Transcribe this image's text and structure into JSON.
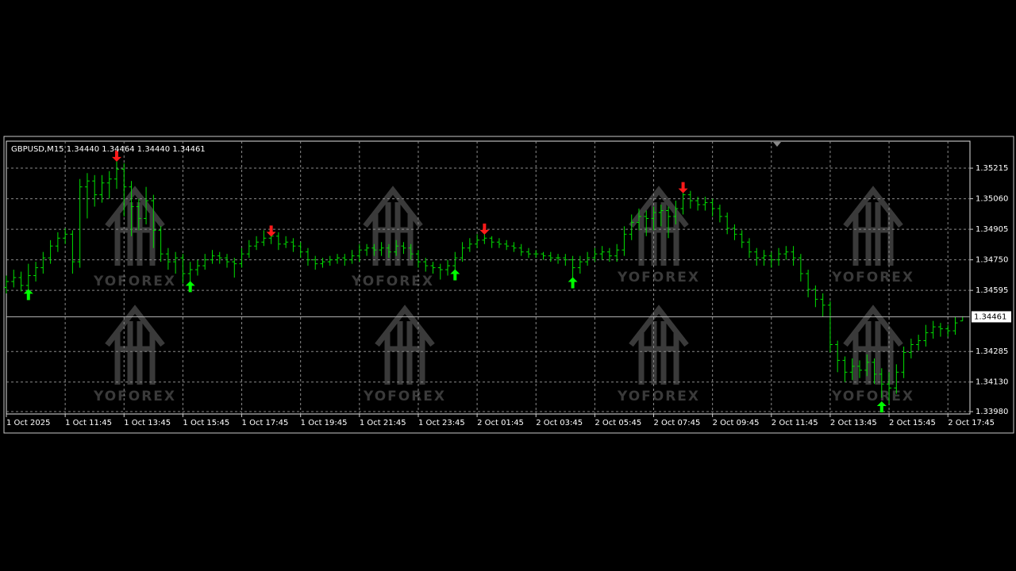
{
  "chart_data": {
    "type": "ohlc",
    "title": "GBPUSD,M15  1.34440 1.34464 1.34440 1.34461",
    "watermark": "YOFOREX",
    "color": "#00e000",
    "grid": true,
    "xlim": [
      0,
      131
    ],
    "ylim": [
      1.33968,
      1.35352
    ],
    "xticks": [
      {
        "value": 0,
        "label": "1 Oct 2025"
      },
      {
        "value": 8,
        "label": "1 Oct 11:45"
      },
      {
        "value": 16,
        "label": "1 Oct 13:45"
      },
      {
        "value": 24,
        "label": "1 Oct 15:45"
      },
      {
        "value": 32,
        "label": "1 Oct 17:45"
      },
      {
        "value": 40,
        "label": "1 Oct 19:45"
      },
      {
        "value": 48,
        "label": "1 Oct 21:45"
      },
      {
        "value": 56,
        "label": "1 Oct 23:45"
      },
      {
        "value": 64,
        "label": "2 Oct 01:45"
      },
      {
        "value": 72,
        "label": "2 Oct 03:45"
      },
      {
        "value": 80,
        "label": "2 Oct 05:45"
      },
      {
        "value": 88,
        "label": "2 Oct 07:45"
      },
      {
        "value": 96,
        "label": "2 Oct 09:45"
      },
      {
        "value": 104,
        "label": "2 Oct 11:45"
      },
      {
        "value": 112,
        "label": "2 Oct 13:45"
      },
      {
        "value": 120,
        "label": "2 Oct 15:45"
      },
      {
        "value": 128,
        "label": "2 Oct 17:45"
      }
    ],
    "yticks": [
      1.35215,
      {
        "value": 1.3506,
        "label": "1.35060"
      },
      1.34905,
      {
        "value": 1.3475,
        "label": "1.34750"
      },
      1.34595,
      1.34285,
      {
        "value": 1.3413,
        "label": "1.34130"
      },
      {
        "value": 1.3398,
        "label": "1.33980"
      }
    ],
    "last_price": 1.34461,
    "bars": {
      "open": [
        1.3461,
        1.3464,
        1.3466,
        1.3462,
        1.3467,
        1.3471,
        1.3476,
        1.3482,
        1.3486,
        1.3488,
        1.3474,
        1.3512,
        1.3515,
        1.3508,
        1.3514,
        1.3516,
        1.3521,
        1.3512,
        1.3502,
        1.3496,
        1.3505,
        1.349,
        1.3478,
        1.3474,
        1.3476,
        1.3468,
        1.347,
        1.3472,
        1.3475,
        1.3477,
        1.3476,
        1.3474,
        1.3473,
        1.3478,
        1.3482,
        1.3484,
        1.3486,
        1.3487,
        1.3483,
        1.3484,
        1.3482,
        1.3479,
        1.3475,
        1.3473,
        1.3474,
        1.3475,
        1.3476,
        1.3475,
        1.3477,
        1.348,
        1.3481,
        1.348,
        1.3481,
        1.3479,
        1.3482,
        1.3481,
        1.3478,
        1.3474,
        1.3472,
        1.3471,
        1.347,
        1.3472,
        1.3476,
        1.3481,
        1.3483,
        1.3485,
        1.3486,
        1.3484,
        1.3483,
        1.3482,
        1.3481,
        1.3479,
        1.3478,
        1.3478,
        1.3477,
        1.3476,
        1.3476,
        1.3475,
        1.3471,
        1.3474,
        1.3476,
        1.3478,
        1.3479,
        1.3477,
        1.348,
        1.3488,
        1.3494,
        1.3497,
        1.3496,
        1.3499,
        1.35,
        1.3497,
        1.3501,
        1.3508,
        1.3505,
        1.3503,
        1.3504,
        1.3501,
        1.3497,
        1.3491,
        1.3488,
        1.3484,
        1.3479,
        1.3476,
        1.3477,
        1.3475,
        1.3478,
        1.3479,
        1.3476,
        1.3468,
        1.346,
        1.3455,
        1.3452,
        1.3432,
        1.3424,
        1.3418,
        1.3421,
        1.3419,
        1.3423,
        1.3417,
        1.3412,
        1.341,
        1.3418,
        1.3428,
        1.3432,
        1.3434,
        1.3438,
        1.3441,
        1.344,
        1.3439,
        1.3444
      ],
      "high": [
        1.3467,
        1.347,
        1.3469,
        1.3473,
        1.3474,
        1.3479,
        1.3485,
        1.3489,
        1.3491,
        1.349,
        1.3516,
        1.3519,
        1.3518,
        1.3518,
        1.352,
        1.3527,
        1.3524,
        1.3515,
        1.3506,
        1.3512,
        1.3508,
        1.3492,
        1.3481,
        1.3479,
        1.3478,
        1.3474,
        1.3475,
        1.3478,
        1.348,
        1.3479,
        1.3478,
        1.3476,
        1.3481,
        1.3485,
        1.3487,
        1.349,
        1.349,
        1.3489,
        1.3487,
        1.3486,
        1.3484,
        1.3481,
        1.3477,
        1.3476,
        1.3477,
        1.3478,
        1.3478,
        1.348,
        1.3483,
        1.3483,
        1.3483,
        1.3484,
        1.3483,
        1.3485,
        1.3484,
        1.3483,
        1.348,
        1.3476,
        1.3474,
        1.3473,
        1.3475,
        1.3479,
        1.3484,
        1.3486,
        1.3488,
        1.349,
        1.3487,
        1.3486,
        1.3485,
        1.3484,
        1.3483,
        1.3481,
        1.348,
        1.3479,
        1.3479,
        1.3478,
        1.3478,
        1.3477,
        1.3477,
        1.3479,
        1.3481,
        1.3482,
        1.3481,
        1.3483,
        1.3492,
        1.3498,
        1.3501,
        1.35,
        1.3502,
        1.3503,
        1.3502,
        1.3505,
        1.3511,
        1.351,
        1.3507,
        1.3507,
        1.3506,
        1.3503,
        1.3499,
        1.3493,
        1.349,
        1.3486,
        1.3481,
        1.348,
        1.3479,
        1.3481,
        1.3482,
        1.3482,
        1.3478,
        1.347,
        1.3462,
        1.3458,
        1.3454,
        1.3434,
        1.3426,
        1.3425,
        1.3424,
        1.3427,
        1.3425,
        1.342,
        1.3418,
        1.3422,
        1.3431,
        1.3435,
        1.3437,
        1.3442,
        1.3444,
        1.3443,
        1.3442,
        1.3446,
        1.34464
      ],
      "low": [
        1.3458,
        1.3461,
        1.3459,
        1.3457,
        1.3464,
        1.3468,
        1.3473,
        1.3479,
        1.3483,
        1.3468,
        1.3471,
        1.3496,
        1.3502,
        1.3504,
        1.3506,
        1.3511,
        1.3497,
        1.3487,
        1.349,
        1.3493,
        1.3481,
        1.3474,
        1.347,
        1.3468,
        1.3463,
        1.3464,
        1.3467,
        1.347,
        1.3473,
        1.3473,
        1.3471,
        1.3466,
        1.3471,
        1.3476,
        1.348,
        1.3482,
        1.3483,
        1.348,
        1.3481,
        1.3479,
        1.3476,
        1.3472,
        1.347,
        1.3471,
        1.3472,
        1.3473,
        1.3472,
        1.3473,
        1.3474,
        1.3477,
        1.3477,
        1.3477,
        1.3476,
        1.3477,
        1.3478,
        1.3475,
        1.3471,
        1.3469,
        1.3468,
        1.3465,
        1.3467,
        1.3469,
        1.3474,
        1.3479,
        1.3481,
        1.3483,
        1.3481,
        1.3481,
        1.348,
        1.3479,
        1.3477,
        1.3476,
        1.3476,
        1.3475,
        1.3474,
        1.3473,
        1.3472,
        1.3466,
        1.3468,
        1.3472,
        1.3474,
        1.3475,
        1.3474,
        1.3474,
        1.3477,
        1.3485,
        1.349,
        1.3487,
        1.349,
        1.3492,
        1.3486,
        1.3493,
        1.3498,
        1.3501,
        1.35,
        1.35,
        1.3497,
        1.3494,
        1.3488,
        1.3485,
        1.3481,
        1.3476,
        1.3472,
        1.3472,
        1.3471,
        1.3472,
        1.3475,
        1.3472,
        1.3464,
        1.3456,
        1.3451,
        1.3446,
        1.3428,
        1.3418,
        1.3413,
        1.3414,
        1.3415,
        1.3416,
        1.3412,
        1.3405,
        1.3402,
        1.3407,
        1.3415,
        1.3425,
        1.3429,
        1.3431,
        1.3435,
        1.3436,
        1.3436,
        1.3437,
        1.3444
      ],
      "close": [
        1.3464,
        1.3466,
        1.3462,
        1.3467,
        1.3471,
        1.3476,
        1.3482,
        1.3486,
        1.3488,
        1.3474,
        1.3512,
        1.3515,
        1.3508,
        1.3514,
        1.3516,
        1.3521,
        1.3512,
        1.3502,
        1.3496,
        1.3505,
        1.349,
        1.3478,
        1.3474,
        1.3476,
        1.3468,
        1.347,
        1.3472,
        1.3475,
        1.3477,
        1.3476,
        1.3474,
        1.3473,
        1.3478,
        1.3482,
        1.3484,
        1.3486,
        1.3487,
        1.3483,
        1.3484,
        1.3482,
        1.3479,
        1.3475,
        1.3473,
        1.3474,
        1.3475,
        1.3476,
        1.3475,
        1.3477,
        1.348,
        1.3481,
        1.348,
        1.3481,
        1.3479,
        1.3482,
        1.3481,
        1.3478,
        1.3474,
        1.3472,
        1.3471,
        1.347,
        1.3472,
        1.3476,
        1.3481,
        1.3483,
        1.3485,
        1.3486,
        1.3484,
        1.3483,
        1.3482,
        1.3481,
        1.3479,
        1.3478,
        1.3478,
        1.3477,
        1.3476,
        1.3476,
        1.3475,
        1.3471,
        1.3474,
        1.3476,
        1.3478,
        1.3479,
        1.3477,
        1.348,
        1.3488,
        1.3494,
        1.3497,
        1.3496,
        1.3499,
        1.35,
        1.3497,
        1.3501,
        1.3508,
        1.3505,
        1.3503,
        1.3504,
        1.3501,
        1.3497,
        1.3491,
        1.3488,
        1.3484,
        1.3479,
        1.3476,
        1.3477,
        1.3475,
        1.3478,
        1.3479,
        1.3476,
        1.3468,
        1.346,
        1.3455,
        1.3452,
        1.3432,
        1.3424,
        1.3418,
        1.3421,
        1.3419,
        1.3423,
        1.3417,
        1.3412,
        1.341,
        1.3418,
        1.3428,
        1.3432,
        1.3434,
        1.3438,
        1.3441,
        1.344,
        1.3439,
        1.3443,
        1.34461
      ]
    },
    "signal_colors": {
      "up": "#00ff00",
      "down": "#ff1a1a"
    },
    "signals": [
      {
        "bar": 3,
        "price": 1.3457,
        "direction": "up"
      },
      {
        "bar": 15,
        "price": 1.3528,
        "direction": "down"
      },
      {
        "bar": 25,
        "price": 1.3461,
        "direction": "up"
      },
      {
        "bar": 36,
        "price": 1.349,
        "direction": "down"
      },
      {
        "bar": 61,
        "price": 1.3467,
        "direction": "up"
      },
      {
        "bar": 65,
        "price": 1.3491,
        "direction": "down"
      },
      {
        "bar": 77,
        "price": 1.3463,
        "direction": "up"
      },
      {
        "bar": 92,
        "price": 1.3512,
        "direction": "down"
      },
      {
        "bar": 119,
        "price": 1.34,
        "direction": "up"
      }
    ]
  }
}
